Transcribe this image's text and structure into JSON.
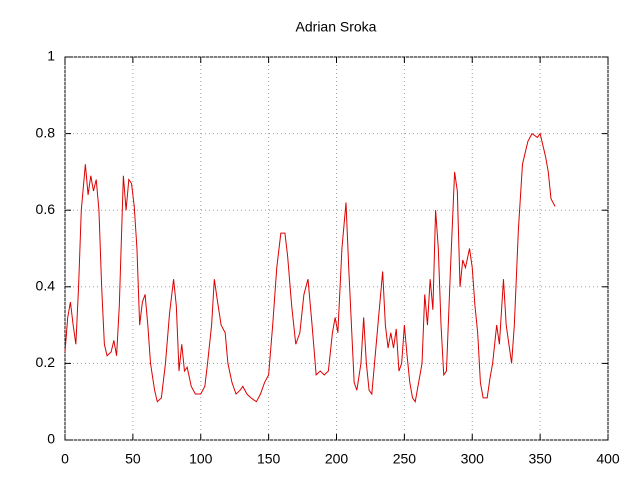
{
  "chart_data": {
    "type": "line",
    "title": "Adrian Sroka",
    "x": [
      0,
      2,
      4,
      6,
      8,
      10,
      12,
      15,
      17,
      19,
      21,
      23,
      25,
      27,
      29,
      31,
      34,
      36,
      38,
      40,
      43,
      45,
      47,
      49,
      51,
      53,
      55,
      57,
      59,
      61,
      63,
      66,
      68,
      71,
      74,
      77,
      80,
      82,
      84,
      86,
      88,
      90,
      93,
      96,
      100,
      103,
      105,
      108,
      110,
      112,
      115,
      118,
      120,
      123,
      126,
      129,
      131,
      134,
      137,
      141,
      144,
      147,
      150,
      153,
      156,
      159,
      162,
      164,
      167,
      170,
      173,
      176,
      179,
      182,
      185,
      188,
      191,
      194,
      197,
      199,
      201,
      204,
      207,
      209,
      211,
      213,
      215,
      218,
      220,
      222,
      224,
      226,
      228,
      231,
      234,
      236,
      238,
      240,
      242,
      244,
      246,
      248,
      250,
      252,
      254,
      256,
      258,
      260,
      263,
      265,
      267,
      269,
      271,
      273,
      275,
      277,
      279,
      281,
      284,
      287,
      289,
      291,
      293,
      295,
      298,
      300,
      302,
      304,
      306,
      308,
      311,
      313,
      315,
      318,
      320,
      323,
      325,
      327,
      329,
      331,
      334,
      337,
      341,
      344,
      348,
      350,
      352,
      354,
      356,
      358,
      361
    ],
    "series": [
      {
        "color": "#dd0000",
        "values": [
          0.23,
          0.32,
          0.36,
          0.3,
          0.25,
          0.4,
          0.6,
          0.72,
          0.64,
          0.69,
          0.65,
          0.68,
          0.6,
          0.4,
          0.25,
          0.22,
          0.23,
          0.26,
          0.22,
          0.35,
          0.69,
          0.6,
          0.68,
          0.67,
          0.61,
          0.5,
          0.3,
          0.36,
          0.38,
          0.3,
          0.2,
          0.13,
          0.1,
          0.11,
          0.2,
          0.33,
          0.42,
          0.35,
          0.18,
          0.25,
          0.18,
          0.19,
          0.14,
          0.12,
          0.12,
          0.14,
          0.2,
          0.3,
          0.42,
          0.37,
          0.3,
          0.28,
          0.2,
          0.15,
          0.12,
          0.13,
          0.14,
          0.12,
          0.11,
          0.1,
          0.12,
          0.15,
          0.17,
          0.3,
          0.45,
          0.54,
          0.54,
          0.48,
          0.35,
          0.25,
          0.28,
          0.38,
          0.42,
          0.3,
          0.17,
          0.18,
          0.17,
          0.18,
          0.28,
          0.32,
          0.28,
          0.5,
          0.62,
          0.45,
          0.3,
          0.15,
          0.13,
          0.2,
          0.32,
          0.2,
          0.13,
          0.12,
          0.2,
          0.32,
          0.44,
          0.3,
          0.24,
          0.28,
          0.24,
          0.29,
          0.18,
          0.2,
          0.3,
          0.22,
          0.15,
          0.11,
          0.1,
          0.14,
          0.2,
          0.38,
          0.3,
          0.42,
          0.34,
          0.6,
          0.5,
          0.3,
          0.17,
          0.18,
          0.45,
          0.7,
          0.65,
          0.4,
          0.47,
          0.45,
          0.5,
          0.45,
          0.35,
          0.28,
          0.15,
          0.11,
          0.11,
          0.16,
          0.2,
          0.3,
          0.25,
          0.42,
          0.3,
          0.25,
          0.2,
          0.3,
          0.55,
          0.72,
          0.78,
          0.8,
          0.79,
          0.8,
          0.77,
          0.74,
          0.7,
          0.63,
          0.61
        ]
      }
    ],
    "xlim": [
      0,
      400
    ],
    "xticks": [
      0,
      50,
      100,
      150,
      200,
      250,
      300,
      350,
      400
    ],
    "ylim": [
      0,
      1
    ],
    "yticks": [
      0,
      0.2,
      0.4,
      0.6,
      0.8,
      1
    ],
    "grid": true
  }
}
